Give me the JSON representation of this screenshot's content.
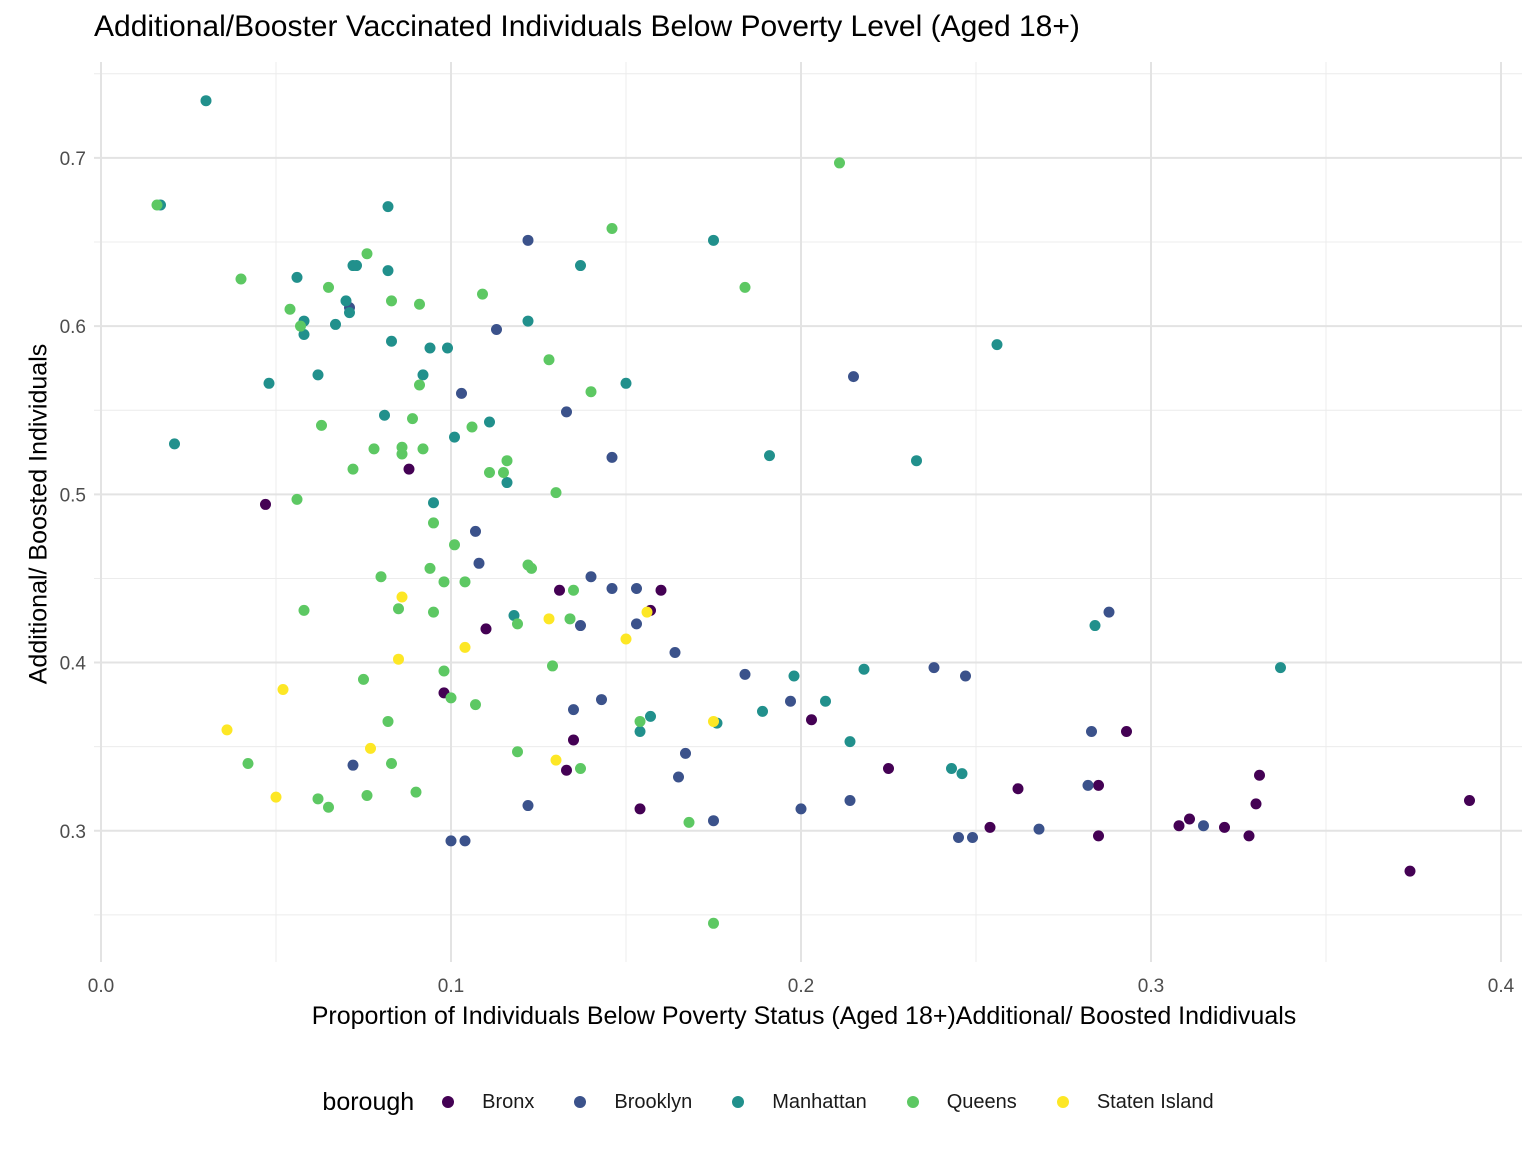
{
  "chart_data": {
    "type": "scatter",
    "title": "Additional/Booster Vaccinated Individuals Below Poverty Level (Aged 18+)",
    "xlabel": "Proportion of Individuals Below Poverty Status (Aged 18+)Additional/ Boosted Indidivuals",
    "ylabel": "Additional/ Boosted Individuals",
    "xlim": [
      -0.002,
      0.406
    ],
    "ylim": [
      0.222,
      0.757
    ],
    "x_ticks": [
      0.0,
      0.1,
      0.2,
      0.3,
      0.4
    ],
    "x_tick_labels": [
      "0.0",
      "0.1",
      "0.2",
      "0.3",
      "0.4"
    ],
    "y_ticks": [
      0.3,
      0.4,
      0.5,
      0.6,
      0.7
    ],
    "y_tick_labels": [
      "0.3",
      "0.4",
      "0.5",
      "0.6",
      "0.7"
    ],
    "grid": true,
    "legend": {
      "title": "borough",
      "position": "bottom"
    },
    "series": [
      {
        "name": "Bronx",
        "color": "#440154",
        "points": [
          [
            0.047,
            0.494
          ],
          [
            0.088,
            0.515
          ],
          [
            0.098,
            0.382
          ],
          [
            0.11,
            0.42
          ],
          [
            0.131,
            0.443
          ],
          [
            0.133,
            0.336
          ],
          [
            0.135,
            0.354
          ],
          [
            0.154,
            0.313
          ],
          [
            0.157,
            0.431
          ],
          [
            0.16,
            0.443
          ],
          [
            0.203,
            0.366
          ],
          [
            0.225,
            0.337
          ],
          [
            0.254,
            0.302
          ],
          [
            0.262,
            0.325
          ],
          [
            0.285,
            0.327
          ],
          [
            0.285,
            0.297
          ],
          [
            0.293,
            0.359
          ],
          [
            0.308,
            0.303
          ],
          [
            0.311,
            0.307
          ],
          [
            0.321,
            0.302
          ],
          [
            0.328,
            0.297
          ],
          [
            0.33,
            0.316
          ],
          [
            0.331,
            0.333
          ],
          [
            0.374,
            0.276
          ],
          [
            0.391,
            0.318
          ]
        ]
      },
      {
        "name": "Brooklyn",
        "color": "#3B528B",
        "points": [
          [
            0.071,
            0.611
          ],
          [
            0.072,
            0.339
          ],
          [
            0.1,
            0.294
          ],
          [
            0.103,
            0.56
          ],
          [
            0.104,
            0.294
          ],
          [
            0.107,
            0.478
          ],
          [
            0.108,
            0.459
          ],
          [
            0.113,
            0.598
          ],
          [
            0.122,
            0.651
          ],
          [
            0.122,
            0.315
          ],
          [
            0.133,
            0.549
          ],
          [
            0.135,
            0.372
          ],
          [
            0.137,
            0.422
          ],
          [
            0.14,
            0.451
          ],
          [
            0.143,
            0.378
          ],
          [
            0.146,
            0.522
          ],
          [
            0.146,
            0.444
          ],
          [
            0.153,
            0.444
          ],
          [
            0.153,
            0.423
          ],
          [
            0.164,
            0.406
          ],
          [
            0.165,
            0.332
          ],
          [
            0.167,
            0.346
          ],
          [
            0.175,
            0.306
          ],
          [
            0.184,
            0.393
          ],
          [
            0.197,
            0.377
          ],
          [
            0.2,
            0.313
          ],
          [
            0.214,
            0.318
          ],
          [
            0.215,
            0.57
          ],
          [
            0.238,
            0.397
          ],
          [
            0.245,
            0.296
          ],
          [
            0.247,
            0.392
          ],
          [
            0.249,
            0.296
          ],
          [
            0.268,
            0.301
          ],
          [
            0.282,
            0.327
          ],
          [
            0.283,
            0.359
          ],
          [
            0.288,
            0.43
          ],
          [
            0.315,
            0.303
          ]
        ]
      },
      {
        "name": "Manhattan",
        "color": "#21908C",
        "points": [
          [
            0.017,
            0.672
          ],
          [
            0.021,
            0.53
          ],
          [
            0.03,
            0.734
          ],
          [
            0.048,
            0.566
          ],
          [
            0.056,
            0.629
          ],
          [
            0.058,
            0.603
          ],
          [
            0.058,
            0.595
          ],
          [
            0.062,
            0.571
          ],
          [
            0.067,
            0.601
          ],
          [
            0.07,
            0.615
          ],
          [
            0.071,
            0.608
          ],
          [
            0.072,
            0.636
          ],
          [
            0.073,
            0.636
          ],
          [
            0.081,
            0.547
          ],
          [
            0.082,
            0.671
          ],
          [
            0.082,
            0.633
          ],
          [
            0.083,
            0.591
          ],
          [
            0.092,
            0.571
          ],
          [
            0.094,
            0.587
          ],
          [
            0.095,
            0.495
          ],
          [
            0.099,
            0.587
          ],
          [
            0.101,
            0.534
          ],
          [
            0.111,
            0.543
          ],
          [
            0.116,
            0.507
          ],
          [
            0.118,
            0.428
          ],
          [
            0.122,
            0.603
          ],
          [
            0.137,
            0.636
          ],
          [
            0.15,
            0.566
          ],
          [
            0.154,
            0.359
          ],
          [
            0.157,
            0.368
          ],
          [
            0.175,
            0.651
          ],
          [
            0.176,
            0.364
          ],
          [
            0.189,
            0.371
          ],
          [
            0.191,
            0.523
          ],
          [
            0.198,
            0.392
          ],
          [
            0.207,
            0.377
          ],
          [
            0.214,
            0.353
          ],
          [
            0.218,
            0.396
          ],
          [
            0.233,
            0.52
          ],
          [
            0.243,
            0.337
          ],
          [
            0.246,
            0.334
          ],
          [
            0.256,
            0.589
          ],
          [
            0.284,
            0.422
          ],
          [
            0.337,
            0.397
          ]
        ]
      },
      {
        "name": "Queens",
        "color": "#5DC863",
        "points": [
          [
            0.016,
            0.672
          ],
          [
            0.04,
            0.628
          ],
          [
            0.042,
            0.34
          ],
          [
            0.054,
            0.61
          ],
          [
            0.056,
            0.497
          ],
          [
            0.057,
            0.6
          ],
          [
            0.058,
            0.431
          ],
          [
            0.062,
            0.319
          ],
          [
            0.063,
            0.541
          ],
          [
            0.065,
            0.623
          ],
          [
            0.065,
            0.314
          ],
          [
            0.072,
            0.515
          ],
          [
            0.075,
            0.39
          ],
          [
            0.076,
            0.643
          ],
          [
            0.076,
            0.321
          ],
          [
            0.078,
            0.527
          ],
          [
            0.08,
            0.451
          ],
          [
            0.082,
            0.365
          ],
          [
            0.083,
            0.615
          ],
          [
            0.083,
            0.34
          ],
          [
            0.085,
            0.432
          ],
          [
            0.086,
            0.528
          ],
          [
            0.086,
            0.524
          ],
          [
            0.089,
            0.545
          ],
          [
            0.09,
            0.323
          ],
          [
            0.091,
            0.613
          ],
          [
            0.091,
            0.565
          ],
          [
            0.092,
            0.527
          ],
          [
            0.094,
            0.456
          ],
          [
            0.095,
            0.43
          ],
          [
            0.095,
            0.483
          ],
          [
            0.098,
            0.448
          ],
          [
            0.098,
            0.395
          ],
          [
            0.1,
            0.379
          ],
          [
            0.101,
            0.47
          ],
          [
            0.104,
            0.448
          ],
          [
            0.106,
            0.54
          ],
          [
            0.107,
            0.375
          ],
          [
            0.109,
            0.619
          ],
          [
            0.111,
            0.513
          ],
          [
            0.115,
            0.513
          ],
          [
            0.116,
            0.52
          ],
          [
            0.119,
            0.347
          ],
          [
            0.119,
            0.423
          ],
          [
            0.122,
            0.458
          ],
          [
            0.123,
            0.456
          ],
          [
            0.128,
            0.58
          ],
          [
            0.129,
            0.398
          ],
          [
            0.13,
            0.501
          ],
          [
            0.134,
            0.426
          ],
          [
            0.135,
            0.443
          ],
          [
            0.137,
            0.337
          ],
          [
            0.14,
            0.561
          ],
          [
            0.146,
            0.658
          ],
          [
            0.154,
            0.365
          ],
          [
            0.168,
            0.305
          ],
          [
            0.175,
            0.245
          ],
          [
            0.184,
            0.623
          ],
          [
            0.211,
            0.697
          ]
        ]
      },
      {
        "name": "Staten Island",
        "color": "#FDE725",
        "points": [
          [
            0.036,
            0.36
          ],
          [
            0.05,
            0.32
          ],
          [
            0.052,
            0.384
          ],
          [
            0.077,
            0.349
          ],
          [
            0.085,
            0.402
          ],
          [
            0.086,
            0.439
          ],
          [
            0.104,
            0.409
          ],
          [
            0.128,
            0.426
          ],
          [
            0.13,
            0.342
          ],
          [
            0.15,
            0.414
          ],
          [
            0.156,
            0.43
          ],
          [
            0.175,
            0.365
          ]
        ]
      }
    ]
  }
}
